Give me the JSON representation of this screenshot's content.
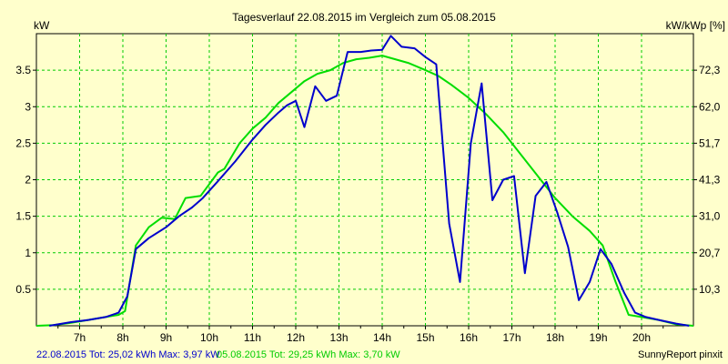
{
  "chart_data": {
    "type": "line",
    "title": "Tagesverlauf 22.08.2015 im Vergleich zum 05.08.2015",
    "y_left_label": "kW",
    "y_right_label": "kW/kWp [%]",
    "x_range_hours": [
      6.0,
      21.2
    ],
    "x_ticks": [
      {
        "h": 7,
        "label": "7h"
      },
      {
        "h": 8,
        "label": "8h"
      },
      {
        "h": 9,
        "label": "9h"
      },
      {
        "h": 10,
        "label": "10h"
      },
      {
        "h": 11,
        "label": "11h"
      },
      {
        "h": 12,
        "label": "12h"
      },
      {
        "h": 13,
        "label": "13h"
      },
      {
        "h": 14,
        "label": "14h"
      },
      {
        "h": 15,
        "label": "15h"
      },
      {
        "h": 16,
        "label": "16h"
      },
      {
        "h": 17,
        "label": "17h"
      },
      {
        "h": 18,
        "label": "18h"
      },
      {
        "h": 19,
        "label": "19h"
      },
      {
        "h": 20,
        "label": "20h"
      }
    ],
    "ylim_left": [
      0,
      4.0
    ],
    "y_left_ticks": [
      {
        "v": 0.5,
        "label": "0.5"
      },
      {
        "v": 1.0,
        "label": "1"
      },
      {
        "v": 1.5,
        "label": "1.5"
      },
      {
        "v": 2.0,
        "label": "2"
      },
      {
        "v": 2.5,
        "label": "2.5"
      },
      {
        "v": 3.0,
        "label": "3"
      },
      {
        "v": 3.5,
        "label": "3.5"
      }
    ],
    "y_right_ticks": [
      {
        "v": 0.5,
        "label": "10,3"
      },
      {
        "v": 1.0,
        "label": "20,7"
      },
      {
        "v": 1.5,
        "label": "31,0"
      },
      {
        "v": 2.0,
        "label": "41,3"
      },
      {
        "v": 2.5,
        "label": "51,7"
      },
      {
        "v": 3.0,
        "label": "62,0"
      },
      {
        "v": 3.5,
        "label": "72,3"
      }
    ],
    "grid": true,
    "series": [
      {
        "name": "22.08.2015",
        "color": "#0000cc",
        "points": [
          [
            6.3,
            0.0
          ],
          [
            6.8,
            0.05
          ],
          [
            7.2,
            0.08
          ],
          [
            7.6,
            0.12
          ],
          [
            7.9,
            0.18
          ],
          [
            8.1,
            0.4
          ],
          [
            8.3,
            1.05
          ],
          [
            8.6,
            1.2
          ],
          [
            9.0,
            1.35
          ],
          [
            9.3,
            1.5
          ],
          [
            9.6,
            1.62
          ],
          [
            9.85,
            1.75
          ],
          [
            10.2,
            1.98
          ],
          [
            10.6,
            2.25
          ],
          [
            11.0,
            2.55
          ],
          [
            11.3,
            2.75
          ],
          [
            11.6,
            2.92
          ],
          [
            11.8,
            3.02
          ],
          [
            12.0,
            3.08
          ],
          [
            12.2,
            2.72
          ],
          [
            12.45,
            3.28
          ],
          [
            12.7,
            3.08
          ],
          [
            12.95,
            3.15
          ],
          [
            13.2,
            3.75
          ],
          [
            13.5,
            3.75
          ],
          [
            13.75,
            3.77
          ],
          [
            14.0,
            3.78
          ],
          [
            14.2,
            3.97
          ],
          [
            14.45,
            3.82
          ],
          [
            14.75,
            3.8
          ],
          [
            15.0,
            3.68
          ],
          [
            15.25,
            3.58
          ],
          [
            15.55,
            1.4
          ],
          [
            15.8,
            0.6
          ],
          [
            16.05,
            2.5
          ],
          [
            16.3,
            3.32
          ],
          [
            16.55,
            1.72
          ],
          [
            16.8,
            2.0
          ],
          [
            17.05,
            2.05
          ],
          [
            17.3,
            0.72
          ],
          [
            17.55,
            1.78
          ],
          [
            17.8,
            1.97
          ],
          [
            18.05,
            1.55
          ],
          [
            18.3,
            1.08
          ],
          [
            18.55,
            0.35
          ],
          [
            18.8,
            0.6
          ],
          [
            19.05,
            1.05
          ],
          [
            19.3,
            0.85
          ],
          [
            19.6,
            0.45
          ],
          [
            19.85,
            0.18
          ],
          [
            20.1,
            0.12
          ],
          [
            20.4,
            0.08
          ],
          [
            20.8,
            0.03
          ],
          [
            21.1,
            0.0
          ]
        ]
      },
      {
        "name": "05.08.2015",
        "color": "#00dd00",
        "points": [
          [
            6.0,
            0.0
          ],
          [
            6.4,
            0.01
          ],
          [
            6.8,
            0.04
          ],
          [
            7.2,
            0.08
          ],
          [
            7.6,
            0.12
          ],
          [
            7.9,
            0.15
          ],
          [
            8.05,
            0.2
          ],
          [
            8.3,
            1.1
          ],
          [
            8.6,
            1.35
          ],
          [
            8.9,
            1.48
          ],
          [
            9.2,
            1.46
          ],
          [
            9.45,
            1.75
          ],
          [
            9.8,
            1.78
          ],
          [
            10.2,
            2.1
          ],
          [
            10.35,
            2.15
          ],
          [
            10.7,
            2.5
          ],
          [
            11.0,
            2.7
          ],
          [
            11.3,
            2.85
          ],
          [
            11.6,
            3.05
          ],
          [
            11.9,
            3.2
          ],
          [
            12.2,
            3.35
          ],
          [
            12.5,
            3.45
          ],
          [
            12.8,
            3.5
          ],
          [
            13.1,
            3.6
          ],
          [
            13.4,
            3.65
          ],
          [
            13.7,
            3.67
          ],
          [
            14.0,
            3.7
          ],
          [
            14.3,
            3.65
          ],
          [
            14.6,
            3.6
          ],
          [
            15.0,
            3.5
          ],
          [
            15.3,
            3.42
          ],
          [
            15.6,
            3.3
          ],
          [
            16.0,
            3.12
          ],
          [
            16.4,
            2.9
          ],
          [
            16.8,
            2.65
          ],
          [
            17.2,
            2.35
          ],
          [
            17.6,
            2.05
          ],
          [
            18.0,
            1.75
          ],
          [
            18.4,
            1.5
          ],
          [
            18.8,
            1.3
          ],
          [
            19.1,
            1.1
          ],
          [
            19.4,
            0.6
          ],
          [
            19.7,
            0.15
          ],
          [
            20.0,
            0.12
          ],
          [
            20.4,
            0.08
          ],
          [
            20.8,
            0.02
          ],
          [
            21.2,
            0.0
          ]
        ]
      }
    ]
  },
  "footer": {
    "legend_blue": "22.08.2015 Tot: 25,02 kWh Max: 3,97 kW",
    "legend_green": "05.08.2015 Tot: 29,25 kWh Max: 3,70 kW",
    "brand": "SunnyReport pinxit"
  },
  "colors": {
    "background": "#ffffcc",
    "grid": "#00cc00",
    "axis": "#000000"
  }
}
